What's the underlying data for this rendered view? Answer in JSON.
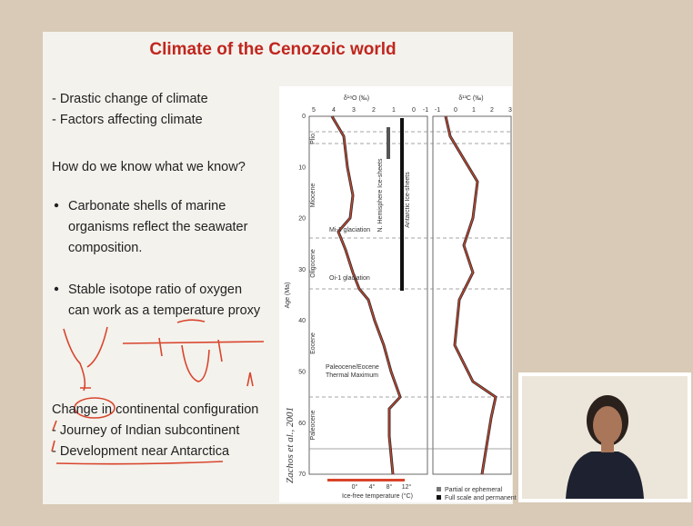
{
  "slide": {
    "title": "Climate of the Cenozoic world",
    "intro": [
      "- Drastic change of climate",
      "- Factors affecting climate"
    ],
    "question": "How do we know what we know?",
    "bullets": [
      {
        "lines": [
          "Carbonate shells of marine",
          "organisms reflect the seawater",
          "composition."
        ]
      },
      {
        "lines": [
          "Stable isotope ratio of oxygen",
          "can work as a temperature proxy"
        ]
      }
    ],
    "closing": [
      "Change in continental configuration",
      "- Journey of Indian subcontinent",
      "- Development near Antarctica"
    ]
  },
  "figure": {
    "oxygen_axis": {
      "title": "δ¹⁸O (‰)",
      "ticks": [
        5,
        4,
        3,
        2,
        1,
        0
      ]
    },
    "carbon_axis": {
      "title": "δ¹³C (‰)",
      "ticks": [
        -1,
        0,
        1,
        2,
        3
      ]
    },
    "extra_tick": -1,
    "age_axis": {
      "title": "Age (Ma)",
      "ticks": [
        0,
        10,
        20,
        30,
        40,
        50,
        60,
        70
      ]
    },
    "epochs": [
      "Plio.",
      "Miocene",
      "Oligocene",
      "Eocene",
      "Paleocene"
    ],
    "ice_labels": [
      "N. Hemisphere Ice-sheets",
      "Antarctic Ice-sheets"
    ],
    "events": [
      "Mi-1 glaciation",
      "Oi-1 glaciation",
      "Paleocene/Eocene",
      "Thermal Maximum"
    ],
    "temperature_ticks": [
      "0°",
      "4°",
      "8°",
      "12°"
    ],
    "temperature_title": "Ice-free temperature (°C)",
    "legend": [
      "Partial or ephemeral",
      "Full scale and permanent"
    ],
    "citation": "Zachos et al., 2001"
  }
}
